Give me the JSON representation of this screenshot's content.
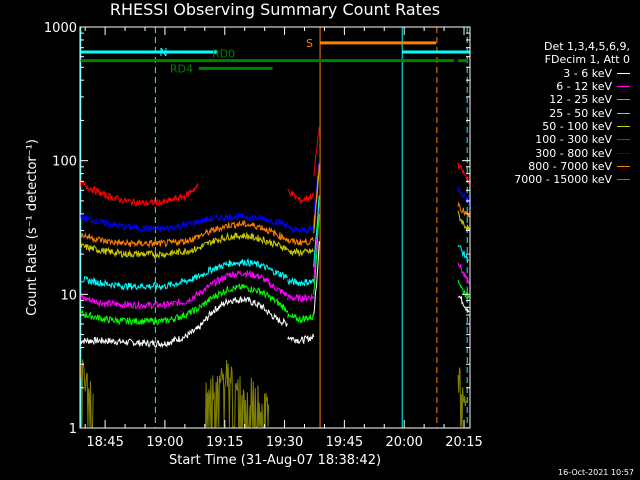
{
  "footer": {
    "date": "16-Oct-2021 10:57"
  },
  "chart_data": {
    "type": "line",
    "title": "RHESSI Observing Summary Count Rates",
    "xlabel": "Start Time (31-Aug-07 18:38:42)",
    "ylabel": "Count Rate (s⁻¹ detector⁻¹)",
    "yscale": "log",
    "ylim": [
      1,
      1000
    ],
    "xlim_min": [
      38.7,
      136.5
    ],
    "x_unit": "minutes after 18:00 UT",
    "x_ticks": [
      {
        "t": 45,
        "label": "18:45"
      },
      {
        "t": 60,
        "label": "19:00"
      },
      {
        "t": 75,
        "label": "19:15"
      },
      {
        "t": 90,
        "label": "19:30"
      },
      {
        "t": 105,
        "label": "19:45"
      },
      {
        "t": 120,
        "label": "20:00"
      },
      {
        "t": 135,
        "label": "20:15"
      }
    ],
    "y_ticks": [
      {
        "v": 1,
        "label": "1"
      },
      {
        "v": 10,
        "label": "10"
      },
      {
        "v": 100,
        "label": "100"
      },
      {
        "v": 1000,
        "label": "1000"
      }
    ],
    "legend": {
      "header": [
        "Det 1,3,4,5,6,9,",
        "FDecim 1, Att 0"
      ],
      "position": "right"
    },
    "series": [
      {
        "name": "3 - 6 keV",
        "color": "#ffffff",
        "segments": [
          {
            "x": [
              38.7,
              45,
              50,
              55,
              60,
              65,
              68.3
            ],
            "y": [
              4.5,
              4.5,
              4.4,
              4.3,
              4.3,
              4.8,
              5.5
            ]
          },
          {
            "x": [
              68.3,
              72,
              76,
              80,
              84,
              88,
              90.8
            ],
            "y": [
              5.5,
              7.5,
              9,
              9.2,
              8.2,
              6.5,
              6.0
            ]
          },
          {
            "x": [
              90.8,
              94,
              97.3
            ],
            "y": [
              4.8,
              4.5,
              4.8
            ]
          },
          {
            "x": [
              97.3,
              98,
              98.7
            ],
            "y": [
              7,
              12,
              25
            ]
          },
          {
            "x": [
              133.5,
              134.5,
              135.5,
              136.3
            ],
            "y": [
              10,
              9,
              8,
              7.5
            ]
          }
        ]
      },
      {
        "name": "6 - 12 keV",
        "color": "#ff00ff",
        "segments": [
          {
            "x": [
              38.7,
              45,
              50,
              55,
              60,
              65,
              68.3
            ],
            "y": [
              9.5,
              8.5,
              8.4,
              8.3,
              8.3,
              8.8,
              10
            ]
          },
          {
            "x": [
              68.3,
              72,
              76,
              80,
              84,
              88,
              90.8
            ],
            "y": [
              10,
              12,
              14,
              14.5,
              13.5,
              11,
              9.8
            ]
          },
          {
            "x": [
              90.8,
              94,
              97.3
            ],
            "y": [
              9.5,
              9.3,
              9.6
            ]
          },
          {
            "x": [
              97.3,
              98,
              98.7
            ],
            "y": [
              12,
              25,
              50
            ]
          },
          {
            "x": [
              133.5,
              134.5,
              135.5,
              136.3
            ],
            "y": [
              18,
              15,
              13,
              12
            ]
          }
        ]
      },
      {
        "name": "12 - 25 keV",
        "color": "#00ff00",
        "segments": [
          {
            "x": [
              38.7,
              45,
              50,
              55,
              60,
              65,
              68.3
            ],
            "y": [
              7.2,
              6.5,
              6.3,
              6.3,
              6.3,
              7.0,
              7.8
            ]
          },
          {
            "x": [
              68.3,
              72,
              76,
              80,
              84,
              88,
              90.8
            ],
            "y": [
              7.8,
              9.5,
              11,
              11.3,
              10.5,
              8.8,
              7.6
            ]
          },
          {
            "x": [
              90.8,
              94,
              97.3
            ],
            "y": [
              6.8,
              6.5,
              6.8
            ]
          },
          {
            "x": [
              97.3,
              98,
              98.7
            ],
            "y": [
              10,
              20,
              40
            ]
          },
          {
            "x": [
              133.5,
              134.5,
              135.5,
              136.3
            ],
            "y": [
              13,
              11,
              10,
              9.5
            ]
          }
        ]
      },
      {
        "name": "25 - 50 keV",
        "color": "#00ffff",
        "segments": [
          {
            "x": [
              38.7,
              45,
              50,
              55,
              60,
              65,
              68.3
            ],
            "y": [
              13,
              12,
              11.5,
              11.5,
              11.5,
              12.5,
              13.5
            ]
          },
          {
            "x": [
              68.3,
              72,
              76,
              80,
              84,
              88,
              90.8
            ],
            "y": [
              13.5,
              15.5,
              17,
              17.5,
              16.5,
              14.5,
              13.5
            ]
          },
          {
            "x": [
              90.8,
              94,
              97.3
            ],
            "y": [
              12.5,
              12.2,
              12.5
            ]
          },
          {
            "x": [
              97.3,
              98,
              98.7
            ],
            "y": [
              16,
              30,
              55
            ]
          },
          {
            "x": [
              133.5,
              134.5,
              135.5,
              136.3
            ],
            "y": [
              24,
              21,
              19,
              18
            ]
          }
        ]
      },
      {
        "name": "50 - 100 keV",
        "color": "#cccc00",
        "segments": [
          {
            "x": [
              38.7,
              45,
              50,
              55,
              60,
              65,
              68.3
            ],
            "y": [
              23,
              21,
              20,
              20,
              20,
              21,
              22
            ]
          },
          {
            "x": [
              68.3,
              72,
              76,
              80,
              84,
              88,
              90.8
            ],
            "y": [
              22,
              25,
              27,
              27.5,
              26,
              23.5,
              22
            ]
          },
          {
            "x": [
              90.8,
              94,
              97.3
            ],
            "y": [
              21,
              20.5,
              21
            ]
          },
          {
            "x": [
              97.3,
              98,
              98.7
            ],
            "y": [
              28,
              50,
              90
            ]
          },
          {
            "x": [
              133.5,
              134.5,
              135.5,
              136.3
            ],
            "y": [
              40,
              35,
              32,
              30
            ]
          }
        ]
      },
      {
        "name": "100 - 300 keV",
        "color": "#ff0000",
        "segments": [
          {
            "x": [
              38.7,
              45,
              50,
              55,
              60,
              65,
              68.3
            ],
            "y": [
              68,
              55,
              50,
              48,
              49,
              54,
              65
            ]
          },
          {
            "x": [
              90.8,
              94,
              97.3
            ],
            "y": [
              60,
              50,
              55
            ]
          },
          {
            "x": [
              97.3,
              98,
              98.7
            ],
            "y": [
              75,
              120,
              180
            ]
          },
          {
            "x": [
              133.5,
              134.5,
              135.5,
              136.3
            ],
            "y": [
              92,
              85,
              75,
              70
            ]
          }
        ]
      },
      {
        "name": "300 - 800 keV",
        "color": "#0000ff",
        "segments": [
          {
            "x": [
              38.7,
              45,
              50,
              55,
              60,
              65,
              68.3
            ],
            "y": [
              38,
              34,
              32,
              31,
              31,
              33,
              35
            ]
          },
          {
            "x": [
              68.3,
              72,
              76,
              80,
              84,
              88,
              90.8
            ],
            "y": [
              35,
              37,
              38,
              38,
              37,
              35,
              33
            ]
          },
          {
            "x": [
              90.8,
              94,
              97.3
            ],
            "y": [
              31,
              30,
              31
            ]
          },
          {
            "x": [
              97.3,
              98,
              98.7
            ],
            "y": [
              40,
              65,
              100
            ]
          },
          {
            "x": [
              133.5,
              134.5,
              135.5,
              136.3
            ],
            "y": [
              62,
              57,
              52,
              50
            ]
          }
        ]
      },
      {
        "name": "800 - 7000 keV",
        "color": "#ff8000",
        "segments": [
          {
            "x": [
              38.7,
              45,
              50,
              55,
              60,
              65,
              68.3
            ],
            "y": [
              28,
              25,
              24,
              24,
              24,
              25,
              27
            ]
          },
          {
            "x": [
              68.3,
              72,
              76,
              80,
              84,
              88,
              90.8
            ],
            "y": [
              27,
              30,
              33,
              33.5,
              32,
              28,
              26
            ]
          },
          {
            "x": [
              90.8,
              94,
              97.3
            ],
            "y": [
              25,
              24.5,
              25
            ]
          },
          {
            "x": [
              97.3,
              98,
              98.7
            ],
            "y": [
              32,
              55,
              95
            ]
          },
          {
            "x": [
              133.5,
              134.5,
              135.5,
              136.3
            ],
            "y": [
              48,
              43,
              40,
              38
            ]
          }
        ]
      },
      {
        "name": "7000 - 15000 keV",
        "color": "#808000",
        "segments": [
          {
            "x": [
              38.7,
              42
            ],
            "y": [
              2.8,
              1.8
            ]
          },
          {
            "x": [
              70,
              72,
              74,
              76,
              78,
              80,
              82,
              84,
              86
            ],
            "y": [
              1.9,
              2.0,
              2.2,
              2.6,
              2.4,
              2.0,
              1.8,
              1.7,
              1.5
            ]
          },
          {
            "x": [
              133.5,
              134.5,
              135.5
            ],
            "y": [
              2.5,
              2.0,
              1.6
            ]
          }
        ]
      }
    ],
    "state_bars": [
      {
        "label": "N",
        "color": "#00ffff",
        "y": 650,
        "x": [
          38.7,
          57.6
        ]
      },
      {
        "label": "",
        "color": "#00ffff",
        "y": 650,
        "x": [
          57.6,
          73
        ]
      },
      {
        "label": "",
        "color": "#00ffff",
        "y": 650,
        "x": [
          119.5,
          136.5
        ]
      },
      {
        "label": "S",
        "color": "#ff8000",
        "y": 760,
        "x": [
          98.9,
          128
        ]
      },
      {
        "label": "RD0",
        "color": "#008000",
        "y": 560,
        "x": [
          38.7,
          96.5
        ]
      },
      {
        "label": "",
        "color": "#008000",
        "y": 560,
        "x": [
          96.5,
          132.5
        ]
      },
      {
        "label": "",
        "color": "#008000",
        "y": 560,
        "x": [
          133.5,
          136
        ]
      },
      {
        "label": "RD4",
        "color": "#008000",
        "y": 490,
        "x": [
          68.5,
          87
        ]
      }
    ],
    "vertical_markers": [
      {
        "t": 38.9,
        "color": "#00ffff",
        "style": "solid"
      },
      {
        "t": 57.6,
        "color": "#00ffff",
        "style": "dashed"
      },
      {
        "t": 98.9,
        "color": "#ff8000",
        "style": "solid"
      },
      {
        "t": 119.5,
        "color": "#00ffff",
        "style": "solid"
      },
      {
        "t": 128.2,
        "color": "#ff8000",
        "style": "dashed"
      },
      {
        "t": 135.8,
        "color": "#00ffff",
        "style": "dashed"
      }
    ]
  }
}
